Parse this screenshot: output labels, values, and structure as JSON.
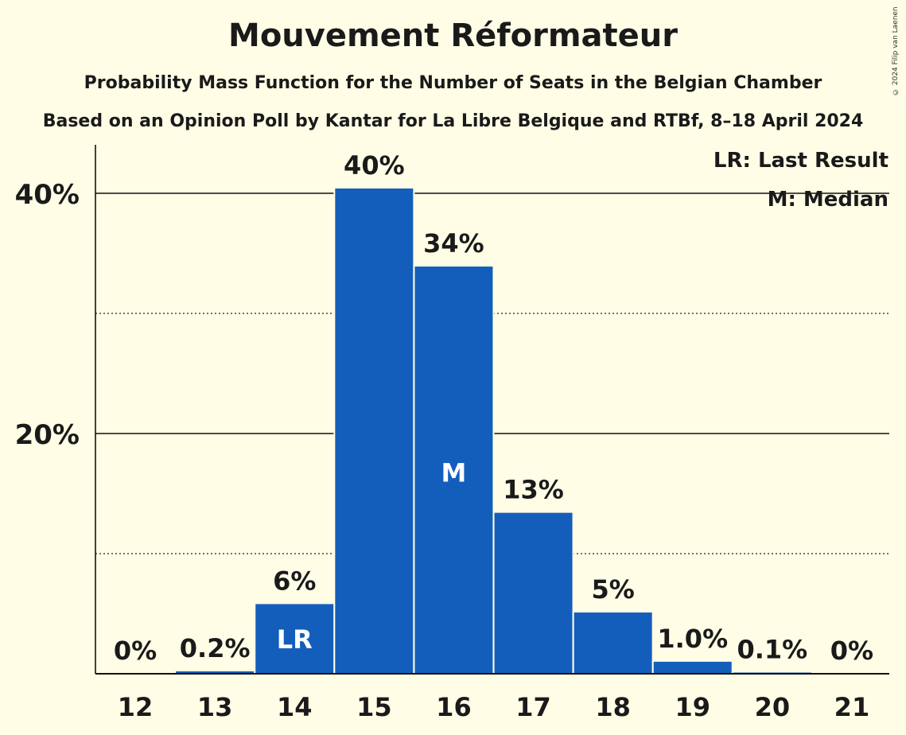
{
  "title": "Mouvement Réformateur",
  "subtitle1": "Probability Mass Function for the Number of Seats in the Belgian Chamber",
  "subtitle2": "Based on an Opinion Poll by Kantar for La Libre Belgique and RTBf, 8–18 April 2024",
  "copyright": "© 2024 Filip van Laenen",
  "legend": [
    "LR: Last Result",
    "M: Median"
  ],
  "colors": {
    "bar": "#135ebb",
    "background": "#fffde6"
  },
  "chart_data": {
    "type": "bar",
    "categories": [
      "12",
      "13",
      "14",
      "15",
      "16",
      "17",
      "18",
      "19",
      "20",
      "21"
    ],
    "values": [
      0,
      0.2,
      5.8,
      40.4,
      33.9,
      13.4,
      5.1,
      1.0,
      0.1,
      0
    ],
    "value_labels": [
      "0%",
      "0.2%",
      "6%",
      "40%",
      "34%",
      "13%",
      "5%",
      "1.0%",
      "0.1%",
      "0%"
    ],
    "markers": {
      "14": "LR",
      "16": "M"
    },
    "ylim": [
      0,
      44
    ],
    "y_ticks": [
      20,
      40
    ],
    "y_tick_labels": [
      "20%",
      "40%"
    ],
    "minor_gridlines": [
      10,
      30
    ],
    "legend_position": "top-right"
  }
}
